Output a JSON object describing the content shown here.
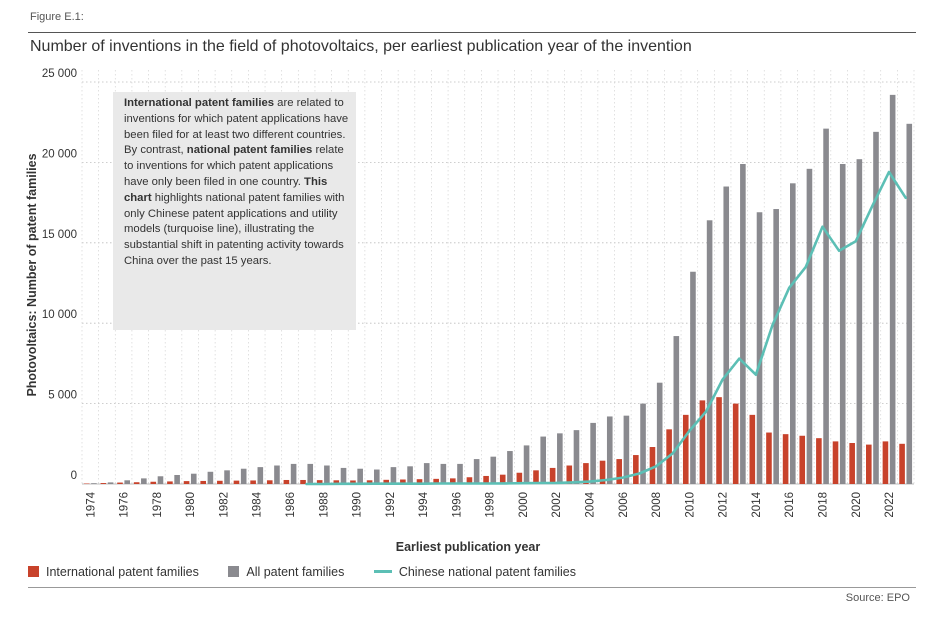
{
  "figure": {
    "label": "Figure E.1:",
    "title": "Number of inventions in the field of photovoltaics, per earliest publication year of the invention",
    "source": "Source: EPO"
  },
  "info_box": {
    "p1_bold": "International patent families",
    "p1_rest": " are related to inventions for which patent applications have been filed for at least two different countries. By contrast, ",
    "p2_bold": "national patent families",
    "p2_rest": " relate to inventions for which patent applications have only been filed in one country. ",
    "p3_bold": "This chart",
    "p3_rest": " highlights national patent families with only Chinese patent applications and utility models (turquoise line), illustrating the substantial shift in patenting activity towards China over the past 15 years."
  },
  "legend": {
    "international": "International patent families",
    "all": "All patent families",
    "chinese": "Chinese national patent families"
  },
  "colors": {
    "international": "#c8422b",
    "all": "#8a8a8f",
    "chinese": "#5cbfb5"
  },
  "chart_data": {
    "type": "bar",
    "xlabel": "Earliest publication year",
    "ylabel": "Photovoltaics: Number of patent families",
    "ylim": [
      0,
      25000
    ],
    "yticks": [
      0,
      5000,
      10000,
      15000,
      20000,
      25000
    ],
    "ytick_labels": [
      "0",
      "5 000",
      "10 000",
      "15 000",
      "20 000",
      "25 000"
    ],
    "x": [
      1974,
      1975,
      1976,
      1977,
      1978,
      1979,
      1980,
      1981,
      1982,
      1983,
      1984,
      1985,
      1986,
      1987,
      1988,
      1989,
      1990,
      1991,
      1992,
      1993,
      1994,
      1995,
      1996,
      1997,
      1998,
      1999,
      2000,
      2001,
      2002,
      2003,
      2004,
      2005,
      2006,
      2007,
      2008,
      2009,
      2010,
      2011,
      2012,
      2013,
      2014,
      2015,
      2016,
      2017,
      2018,
      2019,
      2020,
      2021,
      2022,
      2023
    ],
    "xtick_labels": [
      "1974",
      "1976",
      "1978",
      "1980",
      "1982",
      "1984",
      "1986",
      "1988",
      "1990",
      "1992",
      "1994",
      "1996",
      "1998",
      "2000",
      "2002",
      "2004",
      "2006",
      "2008",
      "2010",
      "2012",
      "2014",
      "2016",
      "2018",
      "2020",
      "2022"
    ],
    "series": [
      {
        "name": "International patent families",
        "kind": "bar",
        "values": [
          30,
          60,
          90,
          110,
          140,
          160,
          180,
          190,
          200,
          210,
          220,
          230,
          250,
          250,
          240,
          230,
          220,
          230,
          260,
          280,
          300,
          320,
          350,
          420,
          500,
          580,
          700,
          850,
          1000,
          1150,
          1300,
          1450,
          1550,
          1800,
          2300,
          3400,
          4300,
          5200,
          5400,
          5000,
          4300,
          3200,
          3100,
          3000,
          2850,
          2650,
          2550,
          2450,
          2650,
          2500
        ]
      },
      {
        "name": "All patent families",
        "kind": "bar",
        "values": [
          50,
          100,
          230,
          350,
          480,
          560,
          640,
          760,
          850,
          950,
          1050,
          1150,
          1250,
          1250,
          1150,
          1000,
          950,
          900,
          1050,
          1100,
          1300,
          1250,
          1250,
          1550,
          1700,
          2050,
          2400,
          2950,
          3150,
          3350,
          3800,
          4200,
          4250,
          5000,
          6300,
          9200,
          13200,
          16400,
          18500,
          19900,
          16900,
          17100,
          18700,
          19600,
          22100,
          19900,
          20200,
          21900,
          24200,
          22400
        ]
      },
      {
        "name": "Chinese national patent families",
        "kind": "line",
        "x": [
          1987,
          1988,
          1989,
          1990,
          1991,
          1992,
          1993,
          1994,
          1995,
          1996,
          1997,
          1998,
          1999,
          2000,
          2001,
          2002,
          2003,
          2004,
          2005,
          2006,
          2007,
          2008,
          2009,
          2010,
          2011,
          2012,
          2013,
          2014,
          2015,
          2016,
          2017,
          2018,
          2019,
          2020,
          2021,
          2022,
          2023
        ],
        "values": [
          0,
          0,
          10,
          10,
          20,
          20,
          20,
          20,
          30,
          30,
          30,
          30,
          40,
          50,
          60,
          70,
          100,
          150,
          250,
          400,
          650,
          1100,
          1900,
          3300,
          4500,
          6500,
          7800,
          6800,
          9900,
          12200,
          13500,
          16000,
          14500,
          15100,
          17300,
          19400,
          17800
        ]
      }
    ]
  }
}
